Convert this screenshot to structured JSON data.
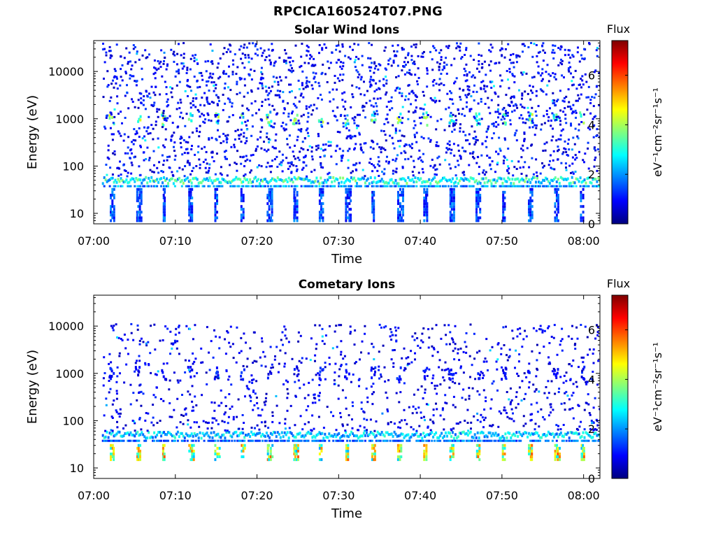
{
  "figure": {
    "title": "RPCICA160524T07.PNG"
  },
  "colorbar": {
    "label": "Flux",
    "unit_label": "eV⁻¹cm⁻²sr⁻¹s⁻¹",
    "range": [
      0,
      7.4
    ],
    "ticks": [
      "0",
      "2",
      "4",
      "6"
    ],
    "colormap": "jet",
    "colormap_stops": [
      "#00007f",
      "#0000ff",
      "#007fff",
      "#00ffff",
      "#7fff7f",
      "#ffff00",
      "#ff7f00",
      "#ff0000",
      "#7f0000"
    ]
  },
  "chart_data": [
    {
      "type": "heatmap",
      "title": "Solar Wind Ions",
      "xlabel": "Time",
      "ylabel": "Energy (eV)",
      "x_ticks": [
        "07:00",
        "07:10",
        "07:20",
        "07:30",
        "07:40",
        "07:50",
        "08:00"
      ],
      "xlim": [
        "07:00",
        "08:02"
      ],
      "y_ticks": [
        "10",
        "100",
        "1000",
        "10000"
      ],
      "y_scale": "log",
      "ylim": [
        6,
        45000
      ],
      "colorbar_label": "Flux",
      "colorbar_range": [
        0,
        7.4
      ],
      "features": [
        {
          "name": "periodic bursts",
          "energy_eV": 1000,
          "flux": 3.2,
          "period_min": 3.2,
          "start": "07:02"
        },
        {
          "name": "continuous band",
          "energy_eV": 50,
          "flux": 3.0,
          "span": [
            "07:01",
            "08:02"
          ]
        },
        {
          "name": "low-energy spikes",
          "energy_range_eV": [
            7,
            35
          ],
          "flux": 1.5,
          "period_min": 3.2
        },
        {
          "name": "background noise",
          "energy_range_eV": [
            60,
            40000
          ],
          "flux": 0.8
        }
      ]
    },
    {
      "type": "heatmap",
      "title": "Cometary Ions",
      "xlabel": "Time",
      "ylabel": "Energy (eV)",
      "x_ticks": [
        "07:00",
        "07:10",
        "07:20",
        "07:30",
        "07:40",
        "07:50",
        "08:00"
      ],
      "xlim": [
        "07:00",
        "08:02"
      ],
      "y_ticks": [
        "10",
        "100",
        "1000",
        "10000"
      ],
      "y_scale": "log",
      "ylim": [
        6,
        45000
      ],
      "colorbar_label": "Flux",
      "colorbar_range": [
        0,
        7.4
      ],
      "features": [
        {
          "name": "low-energy bursts",
          "energy_range_eV": [
            15,
            30
          ],
          "flux": 4.2,
          "period_min": 3.2,
          "start": "07:02"
        },
        {
          "name": "continuous band",
          "energy_eV": 50,
          "flux": 2.5,
          "span": [
            "07:01",
            "08:02"
          ]
        },
        {
          "name": "mid-energy blips",
          "energy_eV": 1000,
          "flux": 1.0,
          "period_min": 3.2
        },
        {
          "name": "background noise",
          "energy_range_eV": [
            60,
            11000
          ],
          "flux": 0.7
        }
      ]
    }
  ]
}
